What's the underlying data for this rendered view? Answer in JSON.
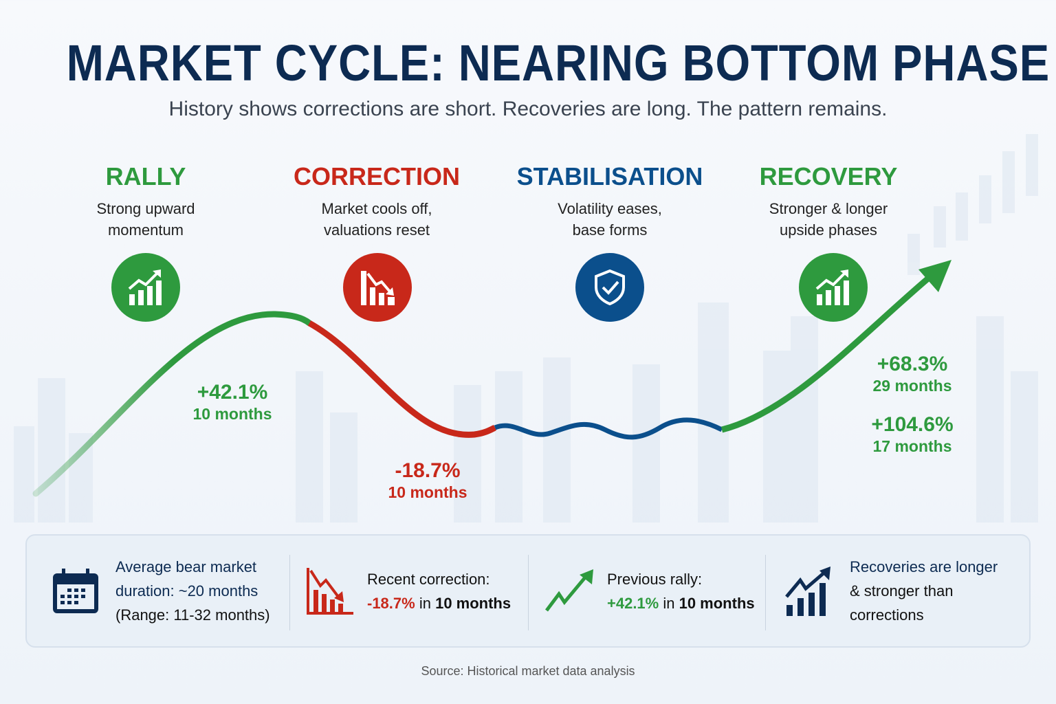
{
  "title": "MARKET CYCLE: NEARING BOTTOM PHASE",
  "subtitle": "History shows corrections are short. Recoveries are long. The pattern remains.",
  "colors": {
    "navy": "#0d2b52",
    "green": "#2e9a3e",
    "red": "#c8281a",
    "blue": "#0b4f8c"
  },
  "phases": [
    {
      "name": "RALLY",
      "desc1": "Strong upward",
      "desc2": "momentum",
      "icon": "bar-chart-up-icon"
    },
    {
      "name": "CORRECTION",
      "desc1": "Market cools off,",
      "desc2": "valuations reset",
      "icon": "bar-chart-down-icon"
    },
    {
      "name": "STABILISATION",
      "desc1": "Volatility eases,",
      "desc2": "base forms",
      "icon": "shield-check-icon"
    },
    {
      "name": "RECOVERY",
      "desc1": "Stronger & longer",
      "desc2": "upside phases",
      "icon": "bar-chart-up-icon"
    }
  ],
  "curve_labels": {
    "rally": {
      "value": "+42.1%",
      "months": "10 months"
    },
    "correction": {
      "value": "-18.7%",
      "months": "10 months"
    },
    "recovery1": {
      "value": "+68.3%",
      "months": "29 months"
    },
    "recovery2": {
      "value": "+104.6%",
      "months": "17 months"
    }
  },
  "footer": {
    "bear": {
      "l1": "Average bear market",
      "l2": "duration: ~20 months",
      "l3": "(Range: 11-32 months)",
      "icon": "calendar-icon"
    },
    "correction": {
      "l1": "Recent correction:",
      "pct": "-18.7%",
      "in": " in ",
      "dur": "10 months",
      "icon": "chart-down-icon"
    },
    "rally": {
      "l1": "Previous rally:",
      "pct": "+42.1%",
      "in": " in ",
      "dur": "10 months",
      "icon": "trend-up-icon"
    },
    "recovery": {
      "l1": "Recoveries are longer",
      "l2": "& stronger than",
      "l3": "corrections",
      "icon": "growth-chart-icon"
    }
  },
  "source": "Source: Historical market data analysis"
}
